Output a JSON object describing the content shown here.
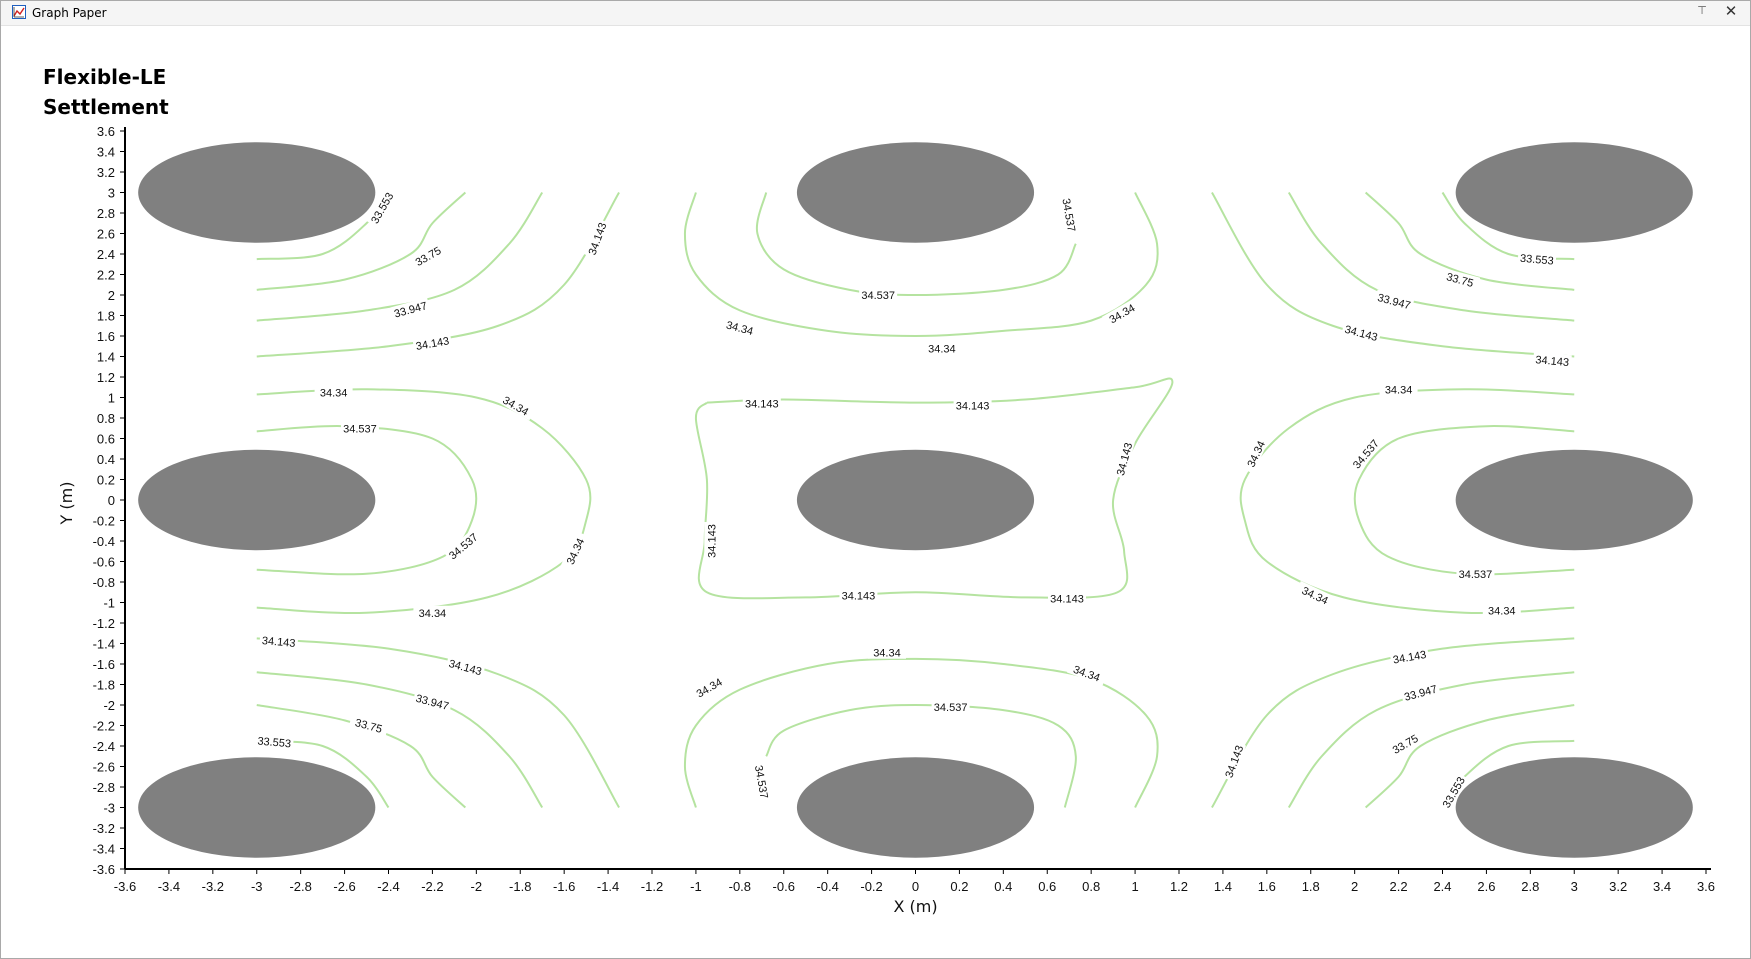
{
  "window": {
    "title": "Graph Paper",
    "icons": {
      "app": "graph-paper-icon",
      "pin": "pin-icon",
      "close": "close-icon"
    },
    "pin_glyph": "⊤",
    "close_glyph": "✕"
  },
  "plot": {
    "title_line1": "Flexible-LE",
    "title_line2": "Settlement"
  },
  "chart_data": {
    "type": "contour",
    "xlabel": "X (m)",
    "ylabel": "Y (m)",
    "xlim": [
      -3.6,
      3.6
    ],
    "ylim": [
      -3.6,
      3.6
    ],
    "xticks": [
      -3.6,
      -3.4,
      -3.2,
      -3,
      -2.8,
      -2.6,
      -2.4,
      -2.2,
      -2,
      -1.8,
      -1.6,
      -1.4,
      -1.2,
      -1,
      -0.8,
      -0.6,
      -0.4,
      -0.2,
      0,
      0.2,
      0.4,
      0.6,
      0.8,
      1,
      1.2,
      1.4,
      1.6,
      1.8,
      2,
      2.2,
      2.4,
      2.6,
      2.8,
      3,
      3.2,
      3.4,
      3.6
    ],
    "yticks": [
      3.6,
      3.4,
      3.2,
      3,
      2.8,
      2.6,
      2.4,
      2.2,
      2,
      1.8,
      1.6,
      1.4,
      1.2,
      1,
      0.8,
      0.6,
      0.4,
      0.2,
      0,
      -0.2,
      -0.4,
      -0.6,
      -0.8,
      -1,
      -1.2,
      -1.4,
      -1.6,
      -1.8,
      -2,
      -2.2,
      -2.4,
      -2.6,
      -2.8,
      -3,
      -3.2,
      -3.4,
      -3.6
    ],
    "line_color": "#b5e3a0",
    "footing_color": "#808080",
    "footings": [
      {
        "x": -3,
        "y": 3
      },
      {
        "x": 0,
        "y": 3
      },
      {
        "x": 3,
        "y": 3
      },
      {
        "x": -3,
        "y": 0
      },
      {
        "x": 0,
        "y": 0
      },
      {
        "x": 3,
        "y": 0
      },
      {
        "x": -3,
        "y": -3
      },
      {
        "x": 0,
        "y": -3
      },
      {
        "x": 3,
        "y": -3
      }
    ],
    "footing_radius": {
      "x": 0.5,
      "y": 0.5
    },
    "contours": [
      {
        "points": [
          [
            -3,
            2.35
          ],
          [
            -2.7,
            2.4
          ],
          [
            -2.5,
            2.7
          ],
          [
            -2.4,
            3
          ]
        ]
      },
      {
        "points": [
          [
            -3,
            2.05
          ],
          [
            -2.6,
            2.15
          ],
          [
            -2.3,
            2.4
          ],
          [
            -2.2,
            2.7
          ],
          [
            -2.05,
            3
          ]
        ]
      },
      {
        "points": [
          [
            -3,
            1.75
          ],
          [
            -2.5,
            1.85
          ],
          [
            -2.1,
            2.05
          ],
          [
            -1.85,
            2.5
          ],
          [
            -1.7,
            3
          ]
        ]
      },
      {
        "points": [
          [
            -3,
            1.4
          ],
          [
            -2.4,
            1.5
          ],
          [
            -1.9,
            1.7
          ],
          [
            -1.6,
            2.1
          ],
          [
            -1.35,
            3
          ]
        ]
      },
      {
        "points": [
          [
            -3,
            3.0
          ]
        ]
      },
      {
        "points": [
          [
            -3,
            1.03
          ],
          [
            -2.5,
            1.08
          ],
          [
            -2.0,
            1.0
          ],
          [
            -1.7,
            0.7
          ],
          [
            -1.5,
            0.2
          ],
          [
            -1.5,
            -0.2
          ],
          [
            -1.6,
            -0.6
          ],
          [
            -1.95,
            -0.95
          ],
          [
            -2.5,
            -1.1
          ],
          [
            -3,
            -1.05
          ]
        ]
      },
      {
        "points": [
          [
            -3,
            0.67
          ],
          [
            -2.6,
            0.72
          ],
          [
            -2.2,
            0.6
          ],
          [
            -2.02,
            0.2
          ],
          [
            -2.02,
            -0.2
          ],
          [
            -2.15,
            -0.55
          ],
          [
            -2.5,
            -0.72
          ],
          [
            -3,
            -0.68
          ]
        ]
      },
      {
        "points": [
          [
            -3,
            -1.35
          ],
          [
            -2.4,
            -1.45
          ],
          [
            -1.9,
            -1.7
          ],
          [
            -1.6,
            -2.1
          ],
          [
            -1.35,
            -3
          ]
        ]
      },
      {
        "points": [
          [
            -3,
            -1.68
          ],
          [
            -2.5,
            -1.8
          ],
          [
            -2.1,
            -2.05
          ],
          [
            -1.85,
            -2.5
          ],
          [
            -1.7,
            -3
          ]
        ]
      },
      {
        "points": [
          [
            -3,
            -2.0
          ],
          [
            -2.6,
            -2.15
          ],
          [
            -2.3,
            -2.4
          ],
          [
            -2.2,
            -2.7
          ],
          [
            -2.05,
            -3
          ]
        ]
      },
      {
        "points": [
          [
            -3,
            -2.35
          ],
          [
            -2.7,
            -2.4
          ],
          [
            -2.5,
            -2.7
          ],
          [
            -2.4,
            -3
          ]
        ]
      },
      {
        "points": [
          [
            -1.0,
            3.0
          ],
          [
            -1.05,
            2.6
          ],
          [
            -1.0,
            2.2
          ],
          [
            -0.8,
            1.85
          ],
          [
            -0.4,
            1.65
          ],
          [
            0,
            1.6
          ],
          [
            0.4,
            1.65
          ],
          [
            0.8,
            1.75
          ],
          [
            1.05,
            2.1
          ],
          [
            1.1,
            2.5
          ],
          [
            1.0,
            3.0
          ]
        ]
      },
      {
        "points": [
          [
            -0.68,
            3.0
          ],
          [
            -0.72,
            2.6
          ],
          [
            -0.6,
            2.25
          ],
          [
            -0.3,
            2.05
          ],
          [
            0,
            2.0
          ],
          [
            0.4,
            2.05
          ],
          [
            0.65,
            2.2
          ],
          [
            0.73,
            2.5
          ]
        ]
      },
      {
        "points": [
          [
            -0.95,
            0.95
          ],
          [
            -0.6,
            0.98
          ],
          [
            0,
            0.95
          ],
          [
            0.5,
            0.98
          ],
          [
            1.0,
            1.1
          ],
          [
            1.17,
            1.15
          ],
          [
            1.0,
            0.55
          ],
          [
            0.9,
            0.0
          ],
          [
            0.95,
            -0.5
          ],
          [
            0.92,
            -0.9
          ],
          [
            0.5,
            -0.95
          ],
          [
            0,
            -0.9
          ],
          [
            -0.5,
            -0.95
          ],
          [
            -0.95,
            -0.9
          ],
          [
            -0.96,
            -0.4
          ],
          [
            -0.95,
            0.2
          ],
          [
            -1.0,
            0.8
          ],
          [
            -0.95,
            0.95
          ]
        ]
      },
      {
        "points": [
          [
            -1.0,
            -3.0
          ],
          [
            -1.05,
            -2.6
          ],
          [
            -1.0,
            -2.2
          ],
          [
            -0.8,
            -1.85
          ],
          [
            -0.4,
            -1.6
          ],
          [
            0,
            -1.55
          ],
          [
            0.4,
            -1.6
          ],
          [
            0.8,
            -1.75
          ],
          [
            1.05,
            -2.1
          ],
          [
            1.1,
            -2.5
          ],
          [
            1.0,
            -3.0
          ]
        ]
      },
      {
        "points": [
          [
            -0.68,
            -2.5
          ],
          [
            -0.6,
            -2.25
          ],
          [
            -0.3,
            -2.05
          ],
          [
            0,
            -2.0
          ],
          [
            0.4,
            -2.05
          ],
          [
            0.65,
            -2.2
          ],
          [
            0.73,
            -2.5
          ],
          [
            0.68,
            -3.0
          ]
        ]
      },
      {
        "points": [
          [
            3,
            2.35
          ],
          [
            2.7,
            2.4
          ],
          [
            2.5,
            2.7
          ],
          [
            2.4,
            3
          ]
        ]
      },
      {
        "points": [
          [
            3,
            2.05
          ],
          [
            2.6,
            2.15
          ],
          [
            2.3,
            2.4
          ],
          [
            2.2,
            2.7
          ],
          [
            2.05,
            3
          ]
        ]
      },
      {
        "points": [
          [
            3,
            1.75
          ],
          [
            2.5,
            1.85
          ],
          [
            2.1,
            2.05
          ],
          [
            1.85,
            2.5
          ],
          [
            1.7,
            3
          ]
        ]
      },
      {
        "points": [
          [
            3,
            1.4
          ],
          [
            2.4,
            1.5
          ],
          [
            1.9,
            1.7
          ],
          [
            1.6,
            2.1
          ],
          [
            1.35,
            3
          ]
        ]
      },
      {
        "points": [
          [
            3,
            1.03
          ],
          [
            2.5,
            1.08
          ],
          [
            2.0,
            1.0
          ],
          [
            1.7,
            0.7
          ],
          [
            1.5,
            0.2
          ],
          [
            1.5,
            -0.2
          ],
          [
            1.6,
            -0.6
          ],
          [
            1.95,
            -0.95
          ],
          [
            2.5,
            -1.1
          ],
          [
            3,
            -1.05
          ]
        ]
      },
      {
        "points": [
          [
            3,
            0.67
          ],
          [
            2.6,
            0.72
          ],
          [
            2.2,
            0.6
          ],
          [
            2.02,
            0.2
          ],
          [
            2.02,
            -0.2
          ],
          [
            2.15,
            -0.55
          ],
          [
            2.5,
            -0.72
          ],
          [
            3,
            -0.68
          ]
        ]
      },
      {
        "points": [
          [
            3,
            -1.35
          ],
          [
            2.4,
            -1.45
          ],
          [
            1.9,
            -1.7
          ],
          [
            1.6,
            -2.1
          ],
          [
            1.35,
            -3
          ]
        ]
      },
      {
        "points": [
          [
            3,
            -1.68
          ],
          [
            2.5,
            -1.8
          ],
          [
            2.1,
            -2.05
          ],
          [
            1.85,
            -2.5
          ],
          [
            1.7,
            -3
          ]
        ]
      },
      {
        "points": [
          [
            3,
            -2.0
          ],
          [
            2.6,
            -2.15
          ],
          [
            2.3,
            -2.4
          ],
          [
            2.2,
            -2.7
          ],
          [
            2.05,
            -3
          ]
        ]
      },
      {
        "points": [
          [
            3,
            -2.35
          ],
          [
            2.7,
            -2.4
          ],
          [
            2.5,
            -2.7
          ],
          [
            2.4,
            -3
          ]
        ]
      }
    ],
    "contour_labels": [
      {
        "text": "33.553",
        "x": -2.43,
        "y": 2.85,
        "rot": -60
      },
      {
        "text": "33.75",
        "x": -2.22,
        "y": 2.38,
        "rot": -30
      },
      {
        "text": "33.947",
        "x": -2.3,
        "y": 1.86,
        "rot": -15
      },
      {
        "text": "34.143",
        "x": -2.2,
        "y": 1.53,
        "rot": -10
      },
      {
        "text": "34.143",
        "x": -1.45,
        "y": 2.55,
        "rot": -70
      },
      {
        "text": "34.34",
        "x": -2.65,
        "y": 1.05,
        "rot": 0
      },
      {
        "text": "34.34",
        "x": -1.82,
        "y": 0.92,
        "rot": 30
      },
      {
        "text": "34.537",
        "x": -2.53,
        "y": 0.7,
        "rot": 0
      },
      {
        "text": "34.537",
        "x": -2.06,
        "y": -0.45,
        "rot": -40
      },
      {
        "text": "34.34",
        "x": -1.55,
        "y": -0.5,
        "rot": -65
      },
      {
        "text": "34.34",
        "x": -2.2,
        "y": -1.1,
        "rot": 0
      },
      {
        "text": "34.143",
        "x": -2.9,
        "y": -1.38,
        "rot": 5
      },
      {
        "text": "34.143",
        "x": -2.05,
        "y": -1.63,
        "rot": 15
      },
      {
        "text": "33.947",
        "x": -2.2,
        "y": -1.97,
        "rot": 15
      },
      {
        "text": "33.75",
        "x": -2.49,
        "y": -2.2,
        "rot": 15
      },
      {
        "text": "33.553",
        "x": -2.92,
        "y": -2.36,
        "rot": 5
      },
      {
        "text": "34.537",
        "x": -0.17,
        "y": 2.0,
        "rot": 0
      },
      {
        "text": "34.537",
        "x": 0.7,
        "y": 2.78,
        "rot": 80
      },
      {
        "text": "34.34",
        "x": -0.8,
        "y": 1.68,
        "rot": 15
      },
      {
        "text": "34.34",
        "x": 0.12,
        "y": 1.48,
        "rot": 0
      },
      {
        "text": "34.34",
        "x": 0.94,
        "y": 1.82,
        "rot": -30
      },
      {
        "text": "34.143",
        "x": -0.7,
        "y": 0.94,
        "rot": 0
      },
      {
        "text": "34.143",
        "x": 0.26,
        "y": 0.92,
        "rot": 0
      },
      {
        "text": "34.143",
        "x": 0.95,
        "y": 0.4,
        "rot": -75
      },
      {
        "text": "34.143",
        "x": -0.93,
        "y": -0.4,
        "rot": -90
      },
      {
        "text": "34.143",
        "x": -0.26,
        "y": -0.93,
        "rot": 0
      },
      {
        "text": "34.143",
        "x": 0.69,
        "y": -0.96,
        "rot": 0
      },
      {
        "text": "34.34",
        "x": -0.94,
        "y": -1.83,
        "rot": -30
      },
      {
        "text": "34.34",
        "x": -0.13,
        "y": -1.49,
        "rot": 0
      },
      {
        "text": "34.34",
        "x": 0.78,
        "y": -1.69,
        "rot": 20
      },
      {
        "text": "34.537",
        "x": 0.16,
        "y": -2.02,
        "rot": 0
      },
      {
        "text": "34.537",
        "x": -0.7,
        "y": -2.75,
        "rot": 80
      },
      {
        "text": "33.553",
        "x": 2.83,
        "y": 2.35,
        "rot": 5
      },
      {
        "text": "33.75",
        "x": 2.48,
        "y": 2.15,
        "rot": 15
      },
      {
        "text": "33.947",
        "x": 2.18,
        "y": 1.94,
        "rot": 15
      },
      {
        "text": "34.143",
        "x": 2.03,
        "y": 1.63,
        "rot": 15
      },
      {
        "text": "34.143",
        "x": 2.9,
        "y": 1.36,
        "rot": 5
      },
      {
        "text": "34.34",
        "x": 2.2,
        "y": 1.08,
        "rot": 0
      },
      {
        "text": "34.34",
        "x": 1.55,
        "y": 0.45,
        "rot": -65
      },
      {
        "text": "34.537",
        "x": 2.05,
        "y": 0.45,
        "rot": -50
      },
      {
        "text": "34.537",
        "x": 2.55,
        "y": -0.72,
        "rot": 0
      },
      {
        "text": "34.34",
        "x": 1.82,
        "y": -0.93,
        "rot": 25
      },
      {
        "text": "34.34",
        "x": 2.67,
        "y": -1.08,
        "rot": 0
      },
      {
        "text": "34.143",
        "x": 2.25,
        "y": -1.53,
        "rot": -10
      },
      {
        "text": "33.947",
        "x": 2.3,
        "y": -1.88,
        "rot": -15
      },
      {
        "text": "33.75",
        "x": 2.23,
        "y": -2.38,
        "rot": -30
      },
      {
        "text": "33.553",
        "x": 2.45,
        "y": -2.85,
        "rot": -60
      },
      {
        "text": "34.143",
        "x": 1.45,
        "y": -2.55,
        "rot": -70
      }
    ]
  }
}
